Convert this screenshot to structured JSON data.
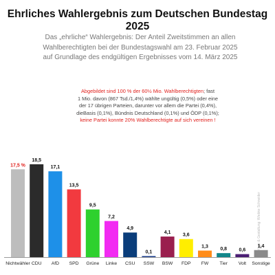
{
  "header": {
    "title": "Ehrliches Wahlergebnis zum Deutschen Bundestag 2025",
    "subtitle_lines": [
      "Das „ehrliche“ Wahlergebnis: Der Anteil Zweitstimmen an allen",
      "Wahlberechtigten bei der Bundestagswahl am 23. Februar 2025",
      "auf Grundlage des endgültigen Ergebnisses vom 14. März 2025"
    ]
  },
  "note": {
    "line1_red": "Abgebildet sind 100 % der 60½ Mio. Wahlberechtigten",
    "line1_rest": "; fast",
    "line2": "1 Mio. davon (867 Tsd./1,4%) wählte ungültig (0,5%) oder eine",
    "line3": "der 17 übrigen Parteien, darunter vor allem die Partei (0,4%),",
    "line4": "dieBasis (0,1%), Bündnis Deutschland (0,1%) und ÖDP (0,1%);",
    "line5_red": "keine Partei konnte 20% Wahlberechtigte auf sich vereinen !"
  },
  "credit": "Vorlage & Gestaltung: Wiebke Schneider",
  "chart_data": {
    "type": "bar",
    "categories": [
      "Nichtwähler",
      "CDU",
      "AfD",
      "SPD",
      "Grüne",
      "Linke",
      "CSU",
      "SSW",
      "BSW",
      "FDP",
      "FW",
      "Tier",
      "Volt",
      "Sonstige"
    ],
    "values": [
      17.5,
      18.5,
      17.1,
      13.5,
      9.5,
      7.2,
      4.9,
      0.1,
      4.1,
      3.6,
      1.3,
      0.8,
      0.6,
      1.4
    ],
    "value_labels": [
      "17,5 %",
      "18,5",
      "17,1",
      "13,5",
      "9,5",
      "7,2",
      "4,9",
      "0,1",
      "4,1",
      "3,6",
      "1,3",
      "0,8",
      "0,6",
      "1,4"
    ],
    "colors": [
      "#bdbdbd",
      "#2b2b2b",
      "#1e90e8",
      "#f23a3f",
      "#2ed12e",
      "#f22af2",
      "#0a3d7a",
      "#1a3c8c",
      "#9a1f4e",
      "#ffee00",
      "#ff8c1a",
      "#11868a",
      "#4b1e74",
      "#8a8a8a"
    ],
    "label_colors": [
      "#e0201c",
      "#111111",
      "#111111",
      "#111111",
      "#111111",
      "#111111",
      "#111111",
      "#111111",
      "#111111",
      "#111111",
      "#111111",
      "#111111",
      "#111111",
      "#111111"
    ],
    "title": "",
    "xlabel": "",
    "ylabel": "",
    "ylim": [
      0,
      20
    ],
    "grid": false,
    "legend": "none"
  }
}
